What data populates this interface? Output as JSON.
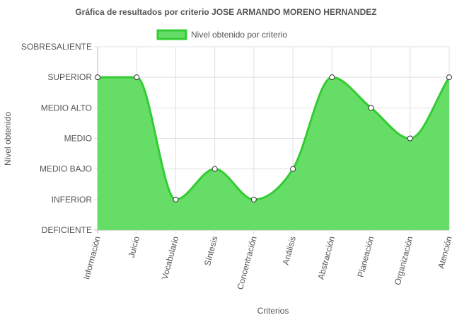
{
  "chart_data": {
    "type": "area",
    "title": "Gráfica de resultados por criterio JOSE ARMANDO MORENO HERNANDEZ",
    "xlabel": "Criterios",
    "ylabel": "Nivel obtenido",
    "y_levels": [
      "DEFICIENTE",
      "INFERIOR",
      "MEDIO BAJO",
      "MEDIO",
      "MEDIO ALTO",
      "SUPERIOR",
      "SOBRESALIENTE"
    ],
    "ylim": [
      0,
      6
    ],
    "categories": [
      "Información",
      "Juicio",
      "Vocabulario",
      "Síntesis",
      "Concentración",
      "Análisis",
      "Abstracción",
      "Planeación",
      "Organización",
      "Atención"
    ],
    "series": [
      {
        "name": "Nivel obtenido por criterio",
        "values": [
          5,
          5,
          1,
          2,
          1,
          2,
          5,
          4,
          3,
          5
        ]
      }
    ],
    "legend_position": "top",
    "grid": true,
    "colors": {
      "fill": "#66dd66",
      "line": "#33cc33",
      "grid": "#e0e0e0",
      "axis": "#bbbbbb"
    }
  }
}
